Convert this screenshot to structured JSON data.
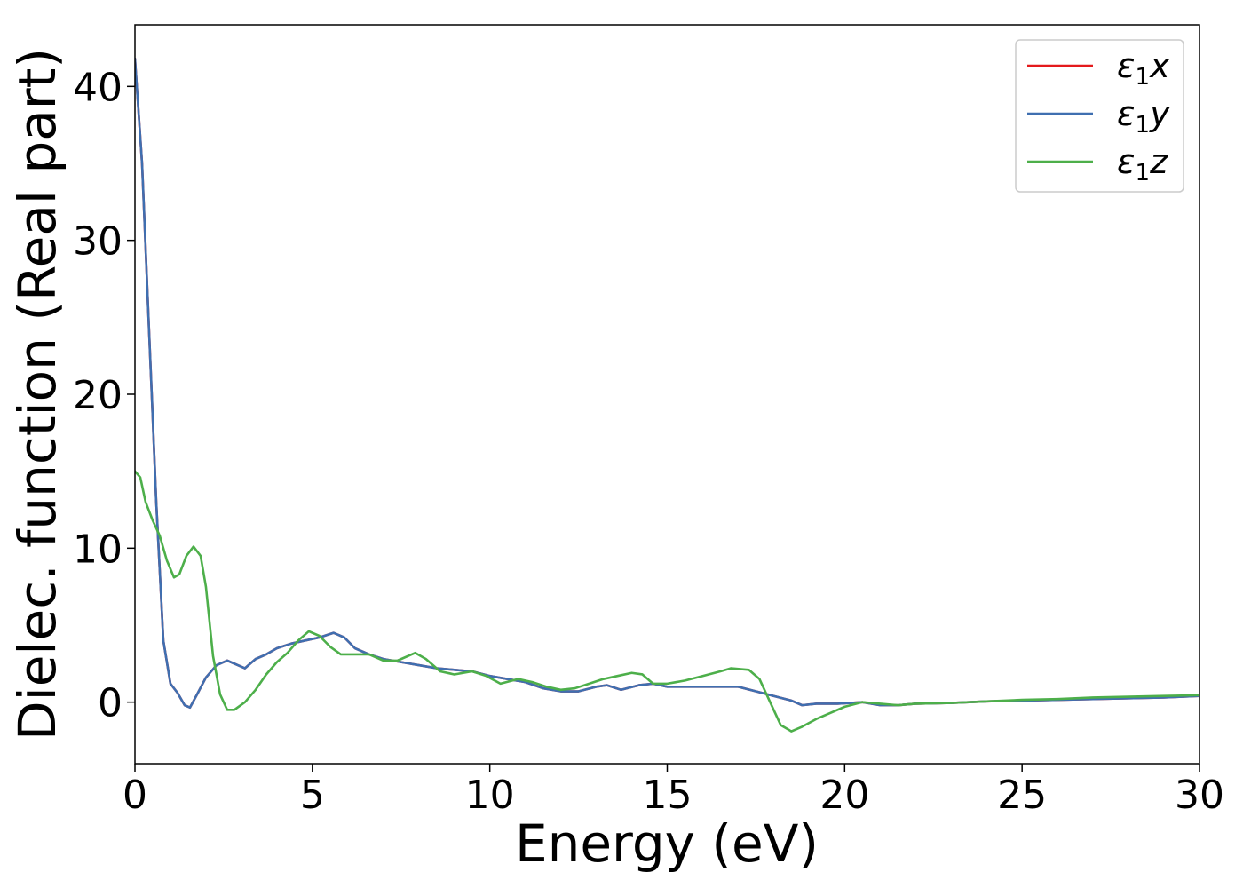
{
  "chart_data": {
    "type": "line",
    "xlabel": "Energy (eV)",
    "ylabel": "Dielec. function (Real part)",
    "xlim": [
      0,
      30
    ],
    "ylim": [
      -4,
      44
    ],
    "xticks": [
      0,
      5,
      10,
      15,
      20,
      25,
      30
    ],
    "yticks": [
      0,
      10,
      20,
      30,
      40
    ],
    "grid": false,
    "legend_position": "top-right",
    "series": [
      {
        "name": "ε1x",
        "label_base": "ε",
        "label_sub": "1",
        "label_var": "x",
        "color": "#e41a1c",
        "points": [
          [
            0,
            41.8
          ],
          [
            0.2,
            35
          ],
          [
            0.4,
            24
          ],
          [
            0.6,
            13
          ],
          [
            0.8,
            4
          ],
          [
            1.0,
            1.2
          ],
          [
            1.2,
            0.6
          ],
          [
            1.4,
            -0.2
          ],
          [
            1.55,
            -0.35
          ],
          [
            1.75,
            0.5
          ],
          [
            2.0,
            1.6
          ],
          [
            2.3,
            2.4
          ],
          [
            2.6,
            2.7
          ],
          [
            2.9,
            2.4
          ],
          [
            3.1,
            2.2
          ],
          [
            3.4,
            2.8
          ],
          [
            3.7,
            3.1
          ],
          [
            4.0,
            3.5
          ],
          [
            4.4,
            3.8
          ],
          [
            4.8,
            4.0
          ],
          [
            5.2,
            4.2
          ],
          [
            5.6,
            4.5
          ],
          [
            5.9,
            4.2
          ],
          [
            6.2,
            3.5
          ],
          [
            6.6,
            3.1
          ],
          [
            7.0,
            2.8
          ],
          [
            7.5,
            2.6
          ],
          [
            8.0,
            2.4
          ],
          [
            8.5,
            2.2
          ],
          [
            9.0,
            2.1
          ],
          [
            9.5,
            2.0
          ],
          [
            10.0,
            1.7
          ],
          [
            10.5,
            1.5
          ],
          [
            11.0,
            1.3
          ],
          [
            11.5,
            0.9
          ],
          [
            12.0,
            0.7
          ],
          [
            12.5,
            0.7
          ],
          [
            13.0,
            1.0
          ],
          [
            13.3,
            1.1
          ],
          [
            13.7,
            0.8
          ],
          [
            14.2,
            1.1
          ],
          [
            14.6,
            1.2
          ],
          [
            15.0,
            1.0
          ],
          [
            15.5,
            1.0
          ],
          [
            16.0,
            1.0
          ],
          [
            16.5,
            1.0
          ],
          [
            17.0,
            1.0
          ],
          [
            17.5,
            0.7
          ],
          [
            18.0,
            0.4
          ],
          [
            18.5,
            0.1
          ],
          [
            18.8,
            -0.2
          ],
          [
            19.2,
            -0.1
          ],
          [
            19.8,
            -0.1
          ],
          [
            20.5,
            0.0
          ],
          [
            21.0,
            -0.2
          ],
          [
            21.5,
            -0.2
          ],
          [
            22.0,
            -0.1
          ],
          [
            23.0,
            -0.05
          ],
          [
            24.0,
            0.05
          ],
          [
            25.0,
            0.1
          ],
          [
            26.0,
            0.15
          ],
          [
            27.0,
            0.2
          ],
          [
            28.0,
            0.25
          ],
          [
            29.0,
            0.3
          ],
          [
            30.0,
            0.4
          ]
        ]
      },
      {
        "name": "ε1y",
        "label_base": "ε",
        "label_sub": "1",
        "label_var": "y",
        "color": "#3f6fb0",
        "points": [
          [
            0,
            41.8
          ],
          [
            0.2,
            35
          ],
          [
            0.4,
            24
          ],
          [
            0.6,
            13
          ],
          [
            0.8,
            4
          ],
          [
            1.0,
            1.2
          ],
          [
            1.2,
            0.6
          ],
          [
            1.4,
            -0.2
          ],
          [
            1.55,
            -0.35
          ],
          [
            1.75,
            0.5
          ],
          [
            2.0,
            1.6
          ],
          [
            2.3,
            2.4
          ],
          [
            2.6,
            2.7
          ],
          [
            2.9,
            2.4
          ],
          [
            3.1,
            2.2
          ],
          [
            3.4,
            2.8
          ],
          [
            3.7,
            3.1
          ],
          [
            4.0,
            3.5
          ],
          [
            4.4,
            3.8
          ],
          [
            4.8,
            4.0
          ],
          [
            5.2,
            4.2
          ],
          [
            5.6,
            4.5
          ],
          [
            5.9,
            4.2
          ],
          [
            6.2,
            3.5
          ],
          [
            6.6,
            3.1
          ],
          [
            7.0,
            2.8
          ],
          [
            7.5,
            2.6
          ],
          [
            8.0,
            2.4
          ],
          [
            8.5,
            2.2
          ],
          [
            9.0,
            2.1
          ],
          [
            9.5,
            2.0
          ],
          [
            10.0,
            1.7
          ],
          [
            10.5,
            1.5
          ],
          [
            11.0,
            1.3
          ],
          [
            11.5,
            0.9
          ],
          [
            12.0,
            0.7
          ],
          [
            12.5,
            0.7
          ],
          [
            13.0,
            1.0
          ],
          [
            13.3,
            1.1
          ],
          [
            13.7,
            0.8
          ],
          [
            14.2,
            1.1
          ],
          [
            14.6,
            1.2
          ],
          [
            15.0,
            1.0
          ],
          [
            15.5,
            1.0
          ],
          [
            16.0,
            1.0
          ],
          [
            16.5,
            1.0
          ],
          [
            17.0,
            1.0
          ],
          [
            17.5,
            0.7
          ],
          [
            18.0,
            0.4
          ],
          [
            18.5,
            0.1
          ],
          [
            18.8,
            -0.2
          ],
          [
            19.2,
            -0.1
          ],
          [
            19.8,
            -0.1
          ],
          [
            20.5,
            0.0
          ],
          [
            21.0,
            -0.2
          ],
          [
            21.5,
            -0.2
          ],
          [
            22.0,
            -0.1
          ],
          [
            23.0,
            -0.05
          ],
          [
            24.0,
            0.05
          ],
          [
            25.0,
            0.1
          ],
          [
            26.0,
            0.15
          ],
          [
            27.0,
            0.2
          ],
          [
            28.0,
            0.25
          ],
          [
            29.0,
            0.3
          ],
          [
            30.0,
            0.4
          ]
        ]
      },
      {
        "name": "ε1z",
        "label_base": "ε",
        "label_sub": "1",
        "label_var": "z",
        "color": "#4daf4a",
        "points": [
          [
            0,
            15.0
          ],
          [
            0.15,
            14.6
          ],
          [
            0.3,
            13.0
          ],
          [
            0.5,
            11.8
          ],
          [
            0.7,
            10.8
          ],
          [
            0.9,
            9.2
          ],
          [
            1.1,
            8.1
          ],
          [
            1.25,
            8.3
          ],
          [
            1.45,
            9.5
          ],
          [
            1.65,
            10.1
          ],
          [
            1.85,
            9.5
          ],
          [
            2.0,
            7.5
          ],
          [
            2.2,
            3.0
          ],
          [
            2.4,
            0.5
          ],
          [
            2.6,
            -0.5
          ],
          [
            2.8,
            -0.5
          ],
          [
            3.1,
            0.0
          ],
          [
            3.4,
            0.8
          ],
          [
            3.7,
            1.8
          ],
          [
            4.0,
            2.6
          ],
          [
            4.3,
            3.2
          ],
          [
            4.6,
            4.0
          ],
          [
            4.9,
            4.6
          ],
          [
            5.2,
            4.3
          ],
          [
            5.5,
            3.6
          ],
          [
            5.8,
            3.1
          ],
          [
            6.2,
            3.1
          ],
          [
            6.6,
            3.1
          ],
          [
            7.0,
            2.7
          ],
          [
            7.4,
            2.7
          ],
          [
            7.9,
            3.2
          ],
          [
            8.2,
            2.8
          ],
          [
            8.6,
            2.0
          ],
          [
            9.0,
            1.8
          ],
          [
            9.5,
            2.0
          ],
          [
            9.9,
            1.7
          ],
          [
            10.3,
            1.2
          ],
          [
            10.8,
            1.5
          ],
          [
            11.2,
            1.3
          ],
          [
            11.6,
            1.0
          ],
          [
            12.0,
            0.8
          ],
          [
            12.4,
            0.9
          ],
          [
            12.8,
            1.2
          ],
          [
            13.2,
            1.5
          ],
          [
            13.6,
            1.7
          ],
          [
            14.0,
            1.9
          ],
          [
            14.3,
            1.8
          ],
          [
            14.6,
            1.2
          ],
          [
            15.0,
            1.2
          ],
          [
            15.5,
            1.4
          ],
          [
            16.0,
            1.7
          ],
          [
            16.5,
            2.0
          ],
          [
            16.8,
            2.2
          ],
          [
            17.3,
            2.1
          ],
          [
            17.6,
            1.5
          ],
          [
            17.9,
            0.0
          ],
          [
            18.2,
            -1.5
          ],
          [
            18.5,
            -1.9
          ],
          [
            18.8,
            -1.6
          ],
          [
            19.2,
            -1.1
          ],
          [
            19.6,
            -0.7
          ],
          [
            20.0,
            -0.3
          ],
          [
            20.5,
            0.0
          ],
          [
            21.0,
            -0.1
          ],
          [
            21.5,
            -0.2
          ],
          [
            22.0,
            -0.1
          ],
          [
            23.0,
            -0.05
          ],
          [
            24.0,
            0.05
          ],
          [
            25.0,
            0.15
          ],
          [
            26.0,
            0.2
          ],
          [
            27.0,
            0.3
          ],
          [
            28.0,
            0.35
          ],
          [
            29.0,
            0.4
          ],
          [
            30.0,
            0.45
          ]
        ]
      }
    ]
  }
}
